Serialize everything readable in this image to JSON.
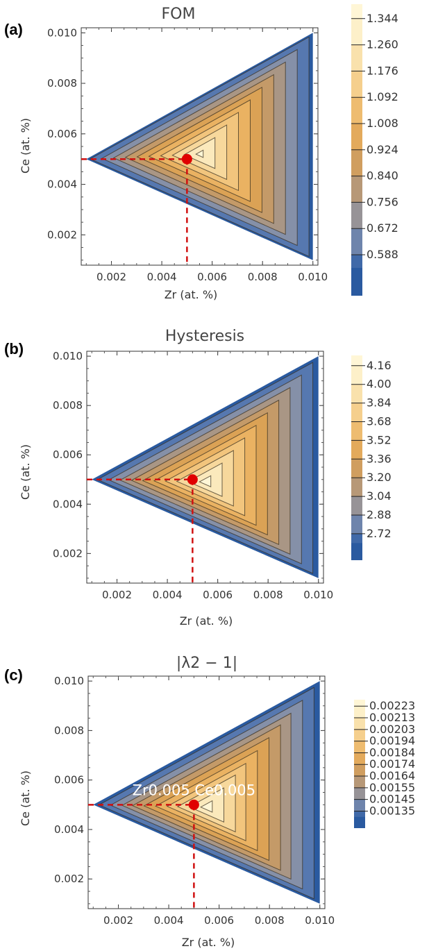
{
  "charts": [
    {
      "letter": "(a)",
      "chart_data": {
        "type": "contour",
        "title": "FOM",
        "xlabel": "Zr (at. %)",
        "ylabel": "Ce (at. %)",
        "xlim": [
          0.0008,
          0.0102
        ],
        "ylim": [
          0.0008,
          0.0102
        ],
        "x_ticks": [
          "0.002",
          "0.004",
          "0.006",
          "0.008",
          "0.010"
        ],
        "y_ticks": [
          "0.002",
          "0.004",
          "0.006",
          "0.008",
          "0.010"
        ],
        "domain_vertices": [
          [
            0.001,
            0.005
          ],
          [
            0.01,
            0.01
          ],
          [
            0.01,
            0.001
          ]
        ],
        "peak": [
          0.0055,
          0.0052
        ],
        "field_low": 0.56,
        "field_high": 1.37,
        "levels": [
          "1.344",
          "1.260",
          "1.176",
          "1.092",
          "1.008",
          "0.924",
          "0.840",
          "0.756",
          "0.672",
          "0.588"
        ],
        "level_values": [
          1.344,
          1.26,
          1.176,
          1.092,
          1.008,
          0.924,
          0.84,
          0.756,
          0.672,
          0.588
        ],
        "marker": [
          0.005,
          0.005
        ],
        "annotation": ""
      }
    },
    {
      "letter": "(b)",
      "chart_data": {
        "type": "contour",
        "title": "Hysteresis",
        "xlabel": "Zr (at. %)",
        "ylabel": "Ce (at. %)",
        "xlim": [
          0.0008,
          0.0102
        ],
        "ylim": [
          0.0008,
          0.0102
        ],
        "x_ticks": [
          "0.002",
          "0.004",
          "0.006",
          "0.008",
          "0.010"
        ],
        "y_ticks": [
          "0.002",
          "0.004",
          "0.006",
          "0.008",
          "0.010"
        ],
        "domain_vertices": [
          [
            0.001,
            0.005
          ],
          [
            0.01,
            0.01
          ],
          [
            0.01,
            0.001
          ]
        ],
        "peak": [
          0.0055,
          0.0049
        ],
        "field_low": 2.64,
        "field_high": 4.24,
        "levels": [
          "4.16",
          "4.00",
          "3.84",
          "3.68",
          "3.52",
          "3.36",
          "3.20",
          "3.04",
          "2.88",
          "2.72"
        ],
        "level_values": [
          4.16,
          4.0,
          3.84,
          3.68,
          3.52,
          3.36,
          3.2,
          3.04,
          2.88,
          2.72
        ],
        "marker": [
          0.005,
          0.005
        ],
        "annotation": ""
      }
    },
    {
      "letter": "(c)",
      "chart_data": {
        "type": "contour",
        "title": "|λ2 − 1|",
        "xlabel": "Zr (at. %)",
        "ylabel": "Ce (at. %)",
        "xlim": [
          0.0008,
          0.0102
        ],
        "ylim": [
          0.0008,
          0.0102
        ],
        "x_ticks": [
          "0.002",
          "0.004",
          "0.006",
          "0.008",
          "0.010"
        ],
        "y_ticks": [
          "0.002",
          "0.004",
          "0.006",
          "0.008",
          "0.010"
        ],
        "domain_vertices": [
          [
            0.001,
            0.005
          ],
          [
            0.01,
            0.01
          ],
          [
            0.01,
            0.001
          ]
        ],
        "peak": [
          0.0055,
          0.0049
        ],
        "field_low": 0.0013,
        "field_high": 0.00228,
        "levels": [
          "0.00223",
          "0.00213",
          "0.00203",
          "0.00194",
          "0.00184",
          "0.00174",
          "0.00164",
          "0.00155",
          "0.00145",
          "0.00135"
        ],
        "level_values": [
          0.00223,
          0.00213,
          0.00203,
          0.00194,
          0.00184,
          0.00174,
          0.00164,
          0.00155,
          0.00145,
          0.00135
        ],
        "marker": [
          0.005,
          0.005
        ],
        "annotation": "Zr0.005 Ce0.005"
      }
    }
  ],
  "colors": {
    "scale": [
      "#2a5aa0",
      "#5678b0",
      "#8590a8",
      "#a99685",
      "#c49a68",
      "#dba255",
      "#eab262",
      "#f2c57d",
      "#f7d89c",
      "#fbe9bc",
      "#fff6d6"
    ],
    "marker": "#e00000",
    "guide": "#d01010",
    "contour_line": "#3a3020",
    "frame": "#333333"
  }
}
